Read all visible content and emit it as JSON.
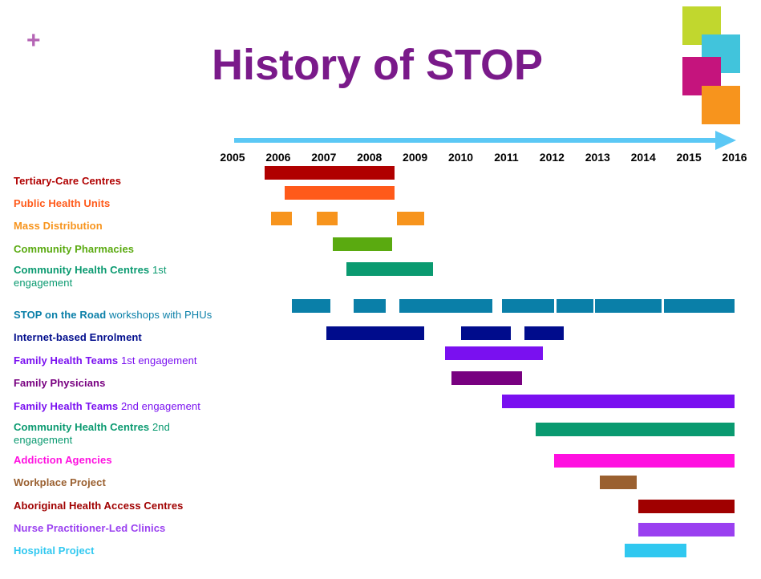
{
  "title": "History of STOP",
  "decor": {
    "plus": "+",
    "squares": [
      "#c1d72e",
      "#41c4dc",
      "#c5147d",
      "#f7941d"
    ]
  },
  "colors": {
    "arrow": "#5bc8f5",
    "title": "#7a1a8a"
  },
  "chart_data": {
    "type": "gantt",
    "x_axis": {
      "ticks": [
        "2005",
        "2006",
        "2007",
        "2008",
        "2009",
        "2010",
        "2011",
        "2012",
        "2013",
        "2014",
        "2015",
        "2016"
      ],
      "range": [
        2005,
        2016
      ]
    },
    "rows": [
      {
        "label": "Tertiary-Care Centres",
        "label_rest": "",
        "color": "#b00000",
        "bars": [
          [
            2005.7,
            2008.55
          ]
        ]
      },
      {
        "label": "Public Health Units",
        "label_rest": "",
        "color": "#ff5a1a",
        "bars": [
          [
            2006.15,
            2008.55
          ]
        ]
      },
      {
        "label": "Mass  Distribution",
        "label_rest": "",
        "color": "#f7941d",
        "bars": [
          [
            2005.85,
            2006.3
          ],
          [
            2006.85,
            2007.3
          ],
          [
            2008.6,
            2009.2
          ]
        ]
      },
      {
        "label": "Community Pharmacies",
        "label_rest": "",
        "color": "#5aaa10",
        "bars": [
          [
            2007.2,
            2008.5
          ]
        ]
      },
      {
        "label": "Community Health Centres",
        "label_rest": " 1st engagement",
        "color": "#0a9a70",
        "bars": [
          [
            2007.5,
            2009.4
          ]
        ]
      },
      {
        "label": "STOP on the Road",
        "label_rest": " workshops  with PHUs",
        "color": "#0a7fa8",
        "bars": [
          [
            2006.3,
            2007.15
          ],
          [
            2007.65,
            2008.35
          ],
          [
            2008.65,
            2010.7
          ],
          [
            2010.9,
            2012.05
          ],
          [
            2012.1,
            2012.9
          ],
          [
            2012.95,
            2014.4
          ],
          [
            2014.45,
            2016.0
          ]
        ]
      },
      {
        "label": "Internet-based Enrolment",
        "label_rest": "",
        "color": "#000c8c",
        "bars": [
          [
            2007.05,
            2009.2
          ],
          [
            2010.0,
            2011.1
          ],
          [
            2011.4,
            2012.25
          ]
        ]
      },
      {
        "label": "Family Health Teams",
        "label_rest": " 1st engagement",
        "color": "#7a10f0",
        "bars": [
          [
            2009.65,
            2011.8
          ]
        ]
      },
      {
        "label": "Family Physicians",
        "label_rest": "",
        "color": "#780080",
        "bars": [
          [
            2009.8,
            2011.35
          ]
        ]
      },
      {
        "label": "Family Health Teams",
        "label_rest": " 2nd engagement",
        "color": "#7a10f0",
        "bars": [
          [
            2010.9,
            2016.0
          ]
        ]
      },
      {
        "label": "Community Health Centres",
        "label_rest": " 2nd engagement",
        "color": "#0a9a70",
        "bars": [
          [
            2011.65,
            2016.0
          ]
        ]
      },
      {
        "label": "Addiction Agencies",
        "label_rest": "",
        "color": "#ff10e0",
        "bars": [
          [
            2012.05,
            2016.0
          ]
        ]
      },
      {
        "label": "Workplace Project",
        "label_rest": "",
        "color": "#9a6030",
        "bars": [
          [
            2013.05,
            2013.85
          ]
        ]
      },
      {
        "label": "Aboriginal Health Access  Centres",
        "label_rest": "",
        "color": "#a00000",
        "bars": [
          [
            2013.9,
            2016.0
          ]
        ]
      },
      {
        "label": "Nurse  Practitioner-Led Clinics",
        "label_rest": "",
        "color": "#9a40f0",
        "bars": [
          [
            2013.9,
            2016.0
          ]
        ]
      },
      {
        "label": "Hospital  Project",
        "label_rest": "",
        "color": "#30c8f0",
        "bars": [
          [
            2013.6,
            2014.95
          ]
        ]
      }
    ]
  }
}
